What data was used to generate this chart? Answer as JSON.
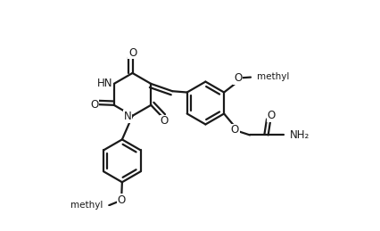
{
  "bg": "#ffffff",
  "lc": "#1a1a1a",
  "lw": 1.6,
  "figsize": [
    4.26,
    2.59
  ],
  "dpi": 100,
  "xlim": [
    0,
    9.5
  ],
  "ylim": [
    0,
    6.0
  ]
}
